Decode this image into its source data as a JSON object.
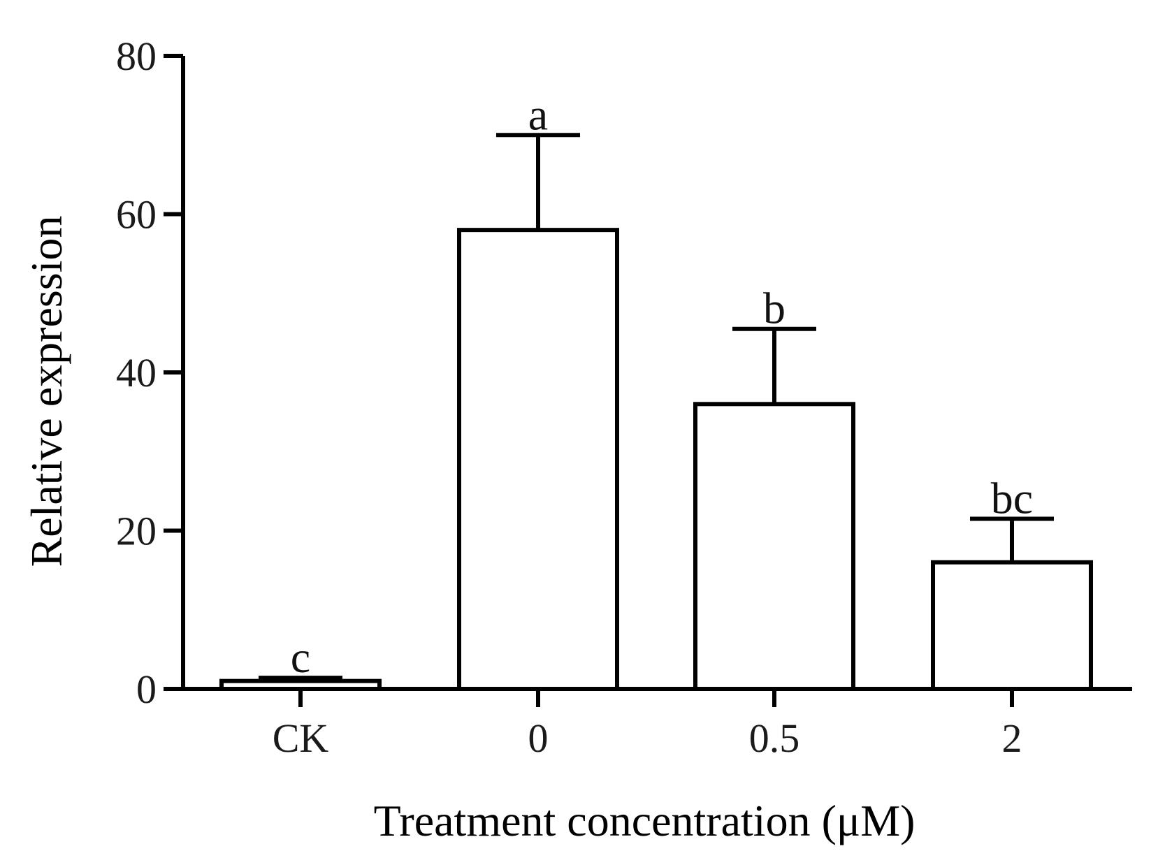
{
  "chart_data": {
    "type": "bar",
    "categories": [
      "CK",
      "0",
      "0.5",
      "2"
    ],
    "values": [
      1,
      58,
      36,
      16
    ],
    "errors": [
      0.4,
      12,
      9.5,
      5.5
    ],
    "significance_labels": [
      "c",
      "a",
      "b",
      "bc"
    ],
    "xlabel": "Treatment concentration (μM)",
    "ylabel": "Relative expression",
    "ylim": [
      0,
      80
    ],
    "yticks": [
      0,
      20,
      40,
      60,
      80
    ],
    "ytick_labels": [
      "0",
      "20",
      "40",
      "60",
      "80"
    ],
    "grid": false,
    "bar_fill": "#ffffff",
    "bar_stroke": "#000000"
  }
}
